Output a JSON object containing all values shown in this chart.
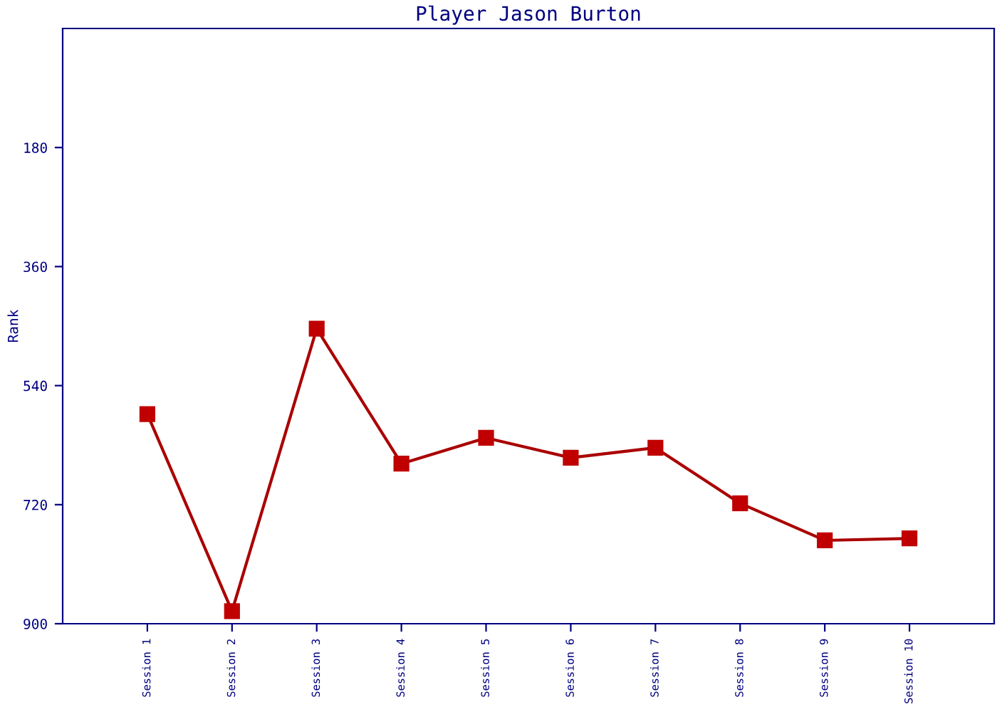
{
  "chart_data": {
    "type": "line",
    "title": "Player Jason Burton",
    "ylabel": "Rank",
    "categories": [
      "Session 1",
      "Session 2",
      "Session 3",
      "Session 4",
      "Session 5",
      "Session 6",
      "Session 7",
      "Session 8",
      "Session 9",
      "Session 10"
    ],
    "series": [
      {
        "color": "#aa0000",
        "values": [
          583,
          881,
          454,
          658,
          619,
          649,
          634,
          718,
          774,
          771
        ]
      }
    ],
    "ylim": [
      900,
      0
    ],
    "yticks": [
      180,
      360,
      540,
      720,
      900
    ],
    "grid": false,
    "legend": false,
    "marker": "square",
    "line_style": "solid"
  }
}
